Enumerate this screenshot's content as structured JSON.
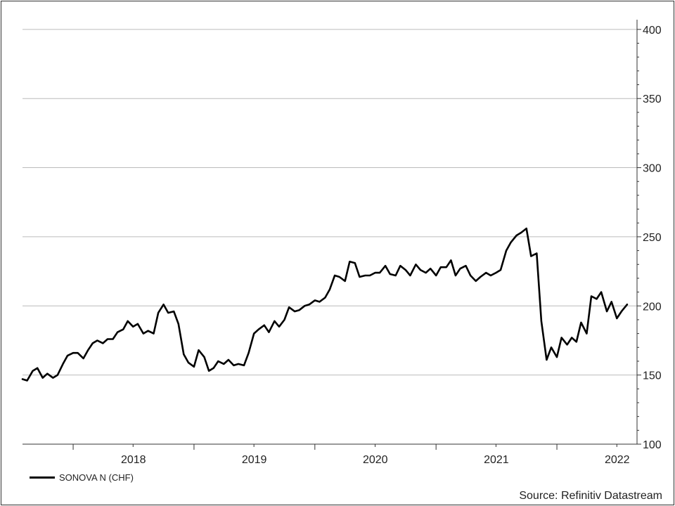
{
  "chart_data": {
    "type": "line",
    "title": "",
    "xlabel": "",
    "ylabel": "",
    "ylim": [
      100,
      405
    ],
    "xlim": [
      "2017-08-01",
      "2022-08-31"
    ],
    "x_tick_labels": [
      "2018",
      "2019",
      "2020",
      "2021",
      "2022"
    ],
    "y_ticks": [
      100,
      150,
      200,
      250,
      300,
      350,
      400
    ],
    "y_axis_side": "right",
    "grid": "horizontal",
    "legend_placement": "bottom-left",
    "series": [
      {
        "name": "SONOVA N (CHF)",
        "color": "#000000",
        "points": [
          [
            "2017-08-01",
            147
          ],
          [
            "2017-08-15",
            146
          ],
          [
            "2017-09-01",
            153
          ],
          [
            "2017-09-15",
            155
          ],
          [
            "2017-10-01",
            148
          ],
          [
            "2017-10-15",
            151
          ],
          [
            "2017-11-01",
            148
          ],
          [
            "2017-11-15",
            150
          ],
          [
            "2017-12-01",
            158
          ],
          [
            "2017-12-15",
            164
          ],
          [
            "2018-01-01",
            166
          ],
          [
            "2018-01-15",
            166
          ],
          [
            "2018-02-01",
            162
          ],
          [
            "2018-02-15",
            168
          ],
          [
            "2018-03-01",
            173
          ],
          [
            "2018-03-15",
            175
          ],
          [
            "2018-04-01",
            173
          ],
          [
            "2018-04-15",
            176
          ],
          [
            "2018-05-01",
            176
          ],
          [
            "2018-05-15",
            181
          ],
          [
            "2018-06-01",
            183
          ],
          [
            "2018-06-15",
            189
          ],
          [
            "2018-07-01",
            185
          ],
          [
            "2018-07-15",
            187
          ],
          [
            "2018-08-01",
            180
          ],
          [
            "2018-08-15",
            182
          ],
          [
            "2018-09-01",
            180
          ],
          [
            "2018-09-15",
            195
          ],
          [
            "2018-10-01",
            201
          ],
          [
            "2018-10-15",
            195
          ],
          [
            "2018-11-01",
            196
          ],
          [
            "2018-11-15",
            187
          ],
          [
            "2018-12-01",
            165
          ],
          [
            "2018-12-15",
            159
          ],
          [
            "2019-01-01",
            156
          ],
          [
            "2019-01-15",
            168
          ],
          [
            "2019-02-01",
            163
          ],
          [
            "2019-02-15",
            153
          ],
          [
            "2019-03-01",
            155
          ],
          [
            "2019-03-15",
            160
          ],
          [
            "2019-04-01",
            158
          ],
          [
            "2019-04-15",
            161
          ],
          [
            "2019-05-01",
            157
          ],
          [
            "2019-05-15",
            158
          ],
          [
            "2019-06-01",
            157
          ],
          [
            "2019-06-15",
            166
          ],
          [
            "2019-07-01",
            180
          ],
          [
            "2019-07-15",
            183
          ],
          [
            "2019-08-01",
            186
          ],
          [
            "2019-08-15",
            181
          ],
          [
            "2019-09-01",
            189
          ],
          [
            "2019-09-15",
            185
          ],
          [
            "2019-10-01",
            190
          ],
          [
            "2019-10-15",
            199
          ],
          [
            "2019-11-01",
            196
          ],
          [
            "2019-11-15",
            197
          ],
          [
            "2019-12-01",
            200
          ],
          [
            "2019-12-15",
            201
          ],
          [
            "2020-01-01",
            204
          ],
          [
            "2020-01-15",
            203
          ],
          [
            "2020-02-01",
            206
          ],
          [
            "2020-02-15",
            212
          ],
          [
            "2020-03-01",
            222
          ],
          [
            "2020-03-15",
            221
          ],
          [
            "2020-04-01",
            218
          ],
          [
            "2020-04-15",
            232
          ],
          [
            "2020-05-01",
            231
          ],
          [
            "2020-05-15",
            221
          ],
          [
            "2020-06-01",
            222
          ],
          [
            "2020-06-15",
            222
          ],
          [
            "2020-07-01",
            224
          ],
          [
            "2020-07-15",
            224
          ],
          [
            "2020-08-01",
            229
          ],
          [
            "2020-08-15",
            223
          ],
          [
            "2020-09-01",
            222
          ],
          [
            "2020-09-15",
            229
          ],
          [
            "2020-10-01",
            226
          ],
          [
            "2020-10-15",
            222
          ],
          [
            "2020-11-01",
            230
          ],
          [
            "2020-11-15",
            226
          ],
          [
            "2020-12-01",
            224
          ],
          [
            "2020-12-15",
            227
          ],
          [
            "2021-01-01",
            222
          ],
          [
            "2021-01-15",
            228
          ],
          [
            "2021-02-01",
            228
          ],
          [
            "2021-02-15",
            233
          ],
          [
            "2021-03-01",
            222
          ],
          [
            "2021-03-15",
            227
          ],
          [
            "2021-04-01",
            229
          ],
          [
            "2021-04-15",
            222
          ],
          [
            "2021-05-01",
            218
          ],
          [
            "2021-05-15",
            221
          ],
          [
            "2021-06-01",
            224
          ],
          [
            "2021-06-15",
            222
          ],
          [
            "2021-07-01",
            224
          ],
          [
            "2021-07-15",
            226
          ],
          [
            "2021-08-01",
            240
          ],
          [
            "2021-08-15",
            246
          ],
          [
            "2021-09-01",
            251
          ],
          [
            "2021-09-15",
            253
          ],
          [
            "2021-10-01",
            256
          ],
          [
            "2021-10-15",
            236
          ],
          [
            "2021-11-01",
            238
          ],
          [
            "2021-11-15",
            189
          ],
          [
            "2021-12-01",
            161
          ],
          [
            "2021-12-15",
            170
          ],
          [
            "2022-01-01",
            163
          ],
          [
            "2022-01-15",
            177
          ],
          [
            "2022-02-01",
            172
          ],
          [
            "2022-02-15",
            177
          ],
          [
            "2022-03-01",
            174
          ],
          [
            "2022-03-15",
            188
          ],
          [
            "2022-04-01",
            180
          ],
          [
            "2022-04-15",
            207
          ],
          [
            "2022-05-01",
            205
          ],
          [
            "2022-05-15",
            210
          ],
          [
            "2022-06-01",
            196
          ],
          [
            "2022-06-15",
            203
          ],
          [
            "2022-07-01",
            191
          ],
          [
            "2022-07-15",
            196
          ],
          [
            "2022-08-01",
            201
          ]
        ]
      }
    ]
  },
  "source_text": "Source: Refinitiv Datastream"
}
